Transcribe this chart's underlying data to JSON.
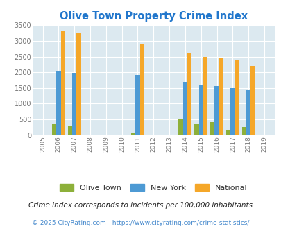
{
  "title": "Olive Town Property Crime Index",
  "years": [
    2005,
    2006,
    2007,
    2008,
    2009,
    2010,
    2011,
    2012,
    2013,
    2014,
    2015,
    2016,
    2017,
    2018,
    2019
  ],
  "olive_town": [
    0,
    380,
    290,
    0,
    0,
    0,
    80,
    0,
    0,
    500,
    340,
    420,
    155,
    255,
    0
  ],
  "new_york": [
    0,
    2040,
    1980,
    0,
    0,
    0,
    1920,
    0,
    0,
    1700,
    1590,
    1560,
    1505,
    1450,
    0
  ],
  "national": [
    0,
    3340,
    3250,
    0,
    0,
    0,
    2920,
    0,
    0,
    2590,
    2490,
    2460,
    2370,
    2200,
    0
  ],
  "olive_color": "#8db03a",
  "ny_color": "#4d9ad4",
  "nat_color": "#f5a729",
  "bg_color": "#dce9f0",
  "ylim": [
    0,
    3500
  ],
  "yticks": [
    0,
    500,
    1000,
    1500,
    2000,
    2500,
    3000,
    3500
  ],
  "legend_labels": [
    "Olive Town",
    "New York",
    "National"
  ],
  "footnote1": "Crime Index corresponds to incidents per 100,000 inhabitants",
  "footnote2": "© 2025 CityRating.com - https://www.cityrating.com/crime-statistics/",
  "title_color": "#2277cc",
  "footnote1_color": "#222222",
  "footnote2_color": "#4488cc",
  "bar_width": 0.28
}
